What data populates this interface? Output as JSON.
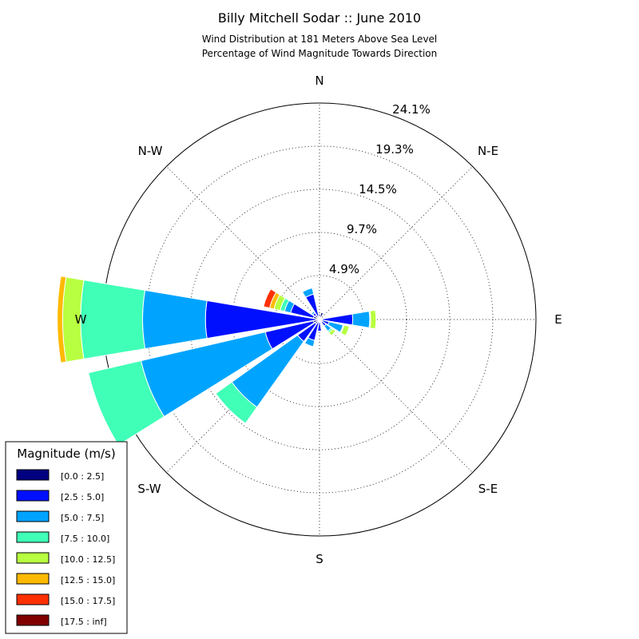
{
  "chart_data": {
    "type": "windrose",
    "title": "Billy Mitchell Sodar :: June 2010",
    "subtitle_lines": [
      "Wind Distribution at 181 Meters Above Sea Level",
      "Percentage of Wind Magnitude Towards Direction"
    ],
    "directions": [
      "N",
      "N-E",
      "E",
      "S-E",
      "S",
      "S-W",
      "W",
      "N-W"
    ],
    "ring_labels": [
      "4.9%",
      "9.7%",
      "14.5%",
      "19.3%",
      "24.1%"
    ],
    "ring_values": [
      4.9,
      9.7,
      14.5,
      19.3,
      24.1
    ],
    "rmax": 24.1,
    "legend": {
      "title": "Magnitude (m/s)",
      "bins": [
        "[0.0 : 2.5]",
        "[2.5 : 5.0]",
        "[5.0 : 7.5]",
        "[7.5 : 10.0]",
        "[10.0 : 12.5]",
        "[12.5 : 15.0]",
        "[15.0 : 17.5]",
        "[17.5 : inf]"
      ],
      "colors": [
        "#000080",
        "#0010ff",
        "#00a4ff",
        "#40ffb7",
        "#b7ff40",
        "#ffb900",
        "#ff3000",
        "#800000"
      ]
    },
    "sectors": [
      {
        "dir_deg": 0,
        "values": [
          0.6,
          0.0
        ]
      },
      {
        "dir_deg": 22.5,
        "values": [
          0.8
        ]
      },
      {
        "dir_deg": 45,
        "values": [
          0.2
        ]
      },
      {
        "dir_deg": 67.5,
        "values": [
          0.3
        ]
      },
      {
        "dir_deg": 90,
        "values": [
          0.3,
          3.4,
          1.9,
          0.1,
          0.6
        ]
      },
      {
        "dir_deg": 112.5,
        "values": [
          0.3,
          0.8,
          1.6,
          0.1,
          0.6
        ]
      },
      {
        "dir_deg": 135,
        "values": [
          0.3,
          0.6,
          0.7,
          0.2,
          0.4
        ]
      },
      {
        "dir_deg": 157.5,
        "values": [
          0.2,
          0.2
        ]
      },
      {
        "dir_deg": 180,
        "values": [
          0.3,
          1.0,
          0.0,
          0.1
        ]
      },
      {
        "dir_deg": 202.5,
        "values": [
          0.3,
          2.1,
          0.7
        ]
      },
      {
        "dir_deg": 225,
        "values": [
          0.6,
          2.4,
          9.0,
          2.2
        ]
      },
      {
        "dir_deg": 247.5,
        "values": [
          0.7,
          5.5,
          14.2,
          6.0
        ]
      },
      {
        "dir_deg": 270,
        "values": [
          0.4,
          12.3,
          7.0,
          6.9,
          2.0,
          0.6
        ]
      },
      {
        "dir_deg": 292.5,
        "values": [
          0.7,
          2.6,
          0.7,
          0.5,
          0.7,
          0.5,
          0.7
        ]
      },
      {
        "dir_deg": 315,
        "values": [
          0.6,
          0.3,
          0.2
        ]
      },
      {
        "dir_deg": 337.5,
        "values": [
          0.4,
          2.5,
          0.7
        ]
      }
    ]
  }
}
